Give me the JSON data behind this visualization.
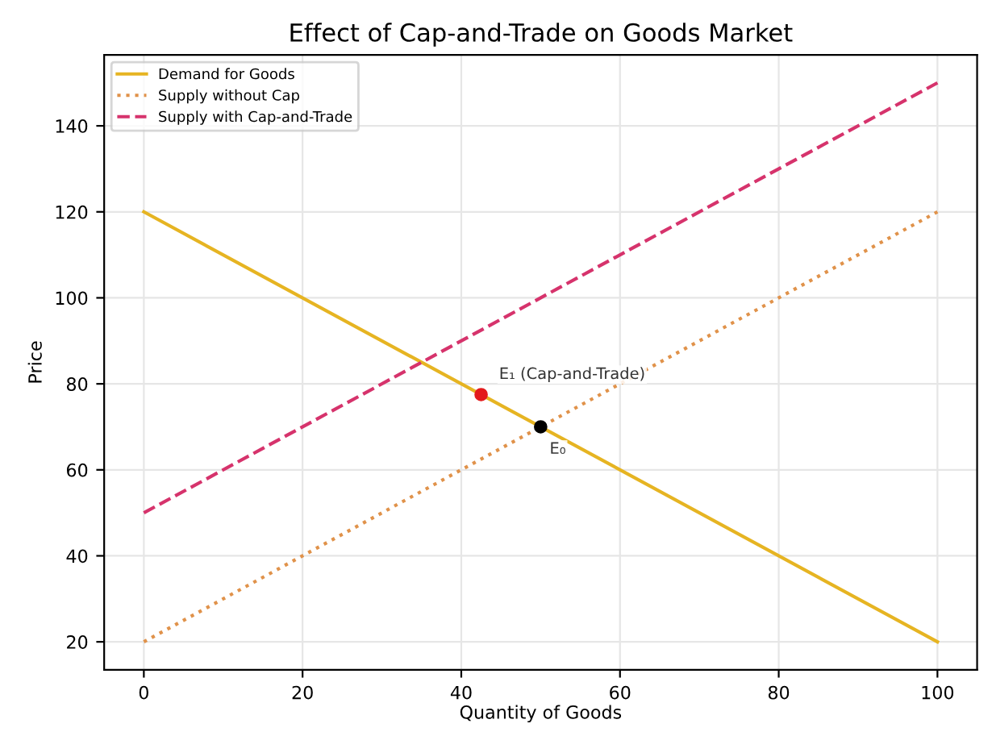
{
  "chart_data": {
    "type": "line",
    "title": "Effect of Cap-and-Trade on Goods Market",
    "xlabel": "Quantity of Goods",
    "ylabel": "Price",
    "series": [
      {
        "name": "Demand for Goods",
        "color": "#e6b422",
        "line_style": "solid",
        "x": [
          0,
          100
        ],
        "values": [
          120,
          20
        ]
      },
      {
        "name": "Supply without Cap",
        "color": "#e0924a",
        "line_style": "dotted",
        "x": [
          0,
          100
        ],
        "values": [
          20,
          120
        ]
      },
      {
        "name": "Supply with Cap-and-Trade",
        "color": "#d6336c",
        "line_style": "dashed",
        "x": [
          0,
          100
        ],
        "values": [
          50,
          150
        ]
      },
      {
        "type": "scatter",
        "color": "#e31a1c",
        "x": [
          42.5
        ],
        "values": [
          77.5
        ]
      },
      {
        "type": "scatter",
        "color": "#000000",
        "x": [
          50
        ],
        "values": [
          70
        ]
      }
    ],
    "annotations": [
      {
        "text": "E₁ (Cap-and-Trade)",
        "x": 42.5,
        "y": 77.5
      },
      {
        "text": "E₀",
        "x": 50,
        "y": 70
      }
    ],
    "xlim": [
      -5,
      105
    ],
    "ylim": [
      13.5,
      156.5
    ],
    "xticks": [
      0,
      20,
      40,
      60,
      80,
      100
    ],
    "yticks": [
      20,
      40,
      60,
      80,
      100,
      120,
      140
    ],
    "grid": true,
    "legend": "top left"
  }
}
